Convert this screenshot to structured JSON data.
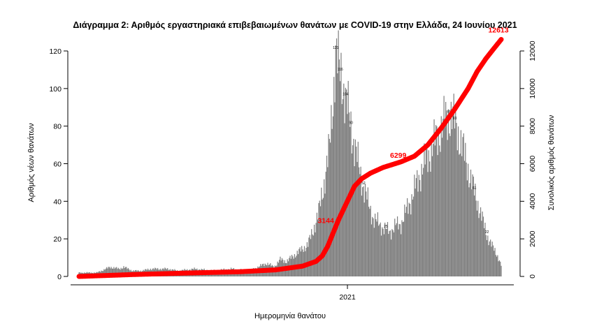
{
  "chart_data": {
    "type": "bar",
    "title": "Διάγραμμα 2: Αριθμός εργαστηριακά επιβεβαιωμένων θανάτων με COVID-19 στην Ελλάδα, 24 Ιουνίου 2021",
    "xlabel": "Ημερομηνία θανάτου",
    "ylabel_left": "Αριθμός νέων θανάτων",
    "ylabel_right": "Συνολικός αριθμός θανάτων",
    "x_tick_labels": [
      "2021"
    ],
    "y_left_ticks": [
      0,
      20,
      40,
      60,
      80,
      100,
      120
    ],
    "y_right_ticks": [
      0,
      2000,
      4000,
      6000,
      8000,
      10000,
      12000
    ],
    "ylim_left": [
      0,
      120
    ],
    "ylim_right": [
      0,
      12000
    ],
    "grid": false,
    "bar_color": "#7f7f7f",
    "line_color": "#ff0000",
    "bar_shape": [
      [
        0,
        2
      ],
      [
        20,
        2
      ],
      [
        35,
        5
      ],
      [
        45,
        4
      ],
      [
        50,
        5
      ],
      [
        60,
        3
      ],
      [
        70,
        3
      ],
      [
        80,
        4
      ],
      [
        100,
        4
      ],
      [
        110,
        3
      ],
      [
        130,
        4
      ],
      [
        150,
        3
      ],
      [
        170,
        4
      ],
      [
        190,
        3
      ],
      [
        200,
        5
      ],
      [
        210,
        7
      ],
      [
        218,
        5
      ],
      [
        225,
        9
      ],
      [
        232,
        8
      ],
      [
        240,
        11
      ],
      [
        248,
        14
      ],
      [
        256,
        17
      ],
      [
        262,
        25
      ],
      [
        268,
        34
      ],
      [
        274,
        50
      ],
      [
        280,
        68
      ],
      [
        284,
        95
      ],
      [
        287,
        120
      ],
      [
        290,
        111
      ],
      [
        294,
        106
      ],
      [
        300,
        90
      ],
      [
        306,
        75
      ],
      [
        312,
        60
      ],
      [
        318,
        48
      ],
      [
        324,
        38
      ],
      [
        330,
        30
      ],
      [
        336,
        28
      ],
      [
        342,
        25
      ],
      [
        348,
        24
      ],
      [
        354,
        27
      ],
      [
        360,
        28
      ],
      [
        366,
        35
      ],
      [
        372,
        42
      ],
      [
        378,
        50
      ],
      [
        384,
        58
      ],
      [
        390,
        64
      ],
      [
        396,
        70
      ],
      [
        402,
        76
      ],
      [
        408,
        82
      ],
      [
        414,
        86
      ],
      [
        418,
        85
      ],
      [
        422,
        80
      ],
      [
        426,
        73
      ],
      [
        432,
        63
      ],
      [
        438,
        52
      ],
      [
        444,
        42
      ],
      [
        450,
        32
      ],
      [
        456,
        22
      ],
      [
        462,
        16
      ],
      [
        468,
        11
      ],
      [
        472,
        6
      ]
    ],
    "cumulative_shape": [
      [
        0,
        0
      ],
      [
        60,
        100
      ],
      [
        120,
        180
      ],
      [
        180,
        250
      ],
      [
        220,
        350
      ],
      [
        250,
        550
      ],
      [
        265,
        800
      ],
      [
        272,
        1100
      ],
      [
        278,
        1600
      ],
      [
        284,
        2300
      ],
      [
        290,
        3000
      ],
      [
        296,
        3600
      ],
      [
        302,
        4200
      ],
      [
        308,
        4800
      ],
      [
        316,
        5200
      ],
      [
        326,
        5500
      ],
      [
        340,
        5800
      ],
      [
        360,
        6100
      ],
      [
        375,
        6400
      ],
      [
        390,
        7000
      ],
      [
        405,
        7900
      ],
      [
        420,
        8900
      ],
      [
        435,
        10000
      ],
      [
        445,
        10900
      ],
      [
        455,
        11600
      ],
      [
        465,
        12200
      ],
      [
        472,
        12613
      ]
    ],
    "bar_value_labels": [
      {
        "x": 287,
        "label": "121"
      },
      {
        "x": 292,
        "label": "116"
      },
      {
        "x": 298,
        "label": "104"
      },
      {
        "x": 304,
        "label": "90"
      },
      {
        "x": 318,
        "label": "52"
      },
      {
        "x": 343,
        "label": "25"
      },
      {
        "x": 414,
        "label": "89"
      },
      {
        "x": 420,
        "label": "93"
      },
      {
        "x": 442,
        "label": "61"
      },
      {
        "x": 456,
        "label": "22"
      }
    ],
    "annotations": [
      {
        "x": 290,
        "label": "3144"
      },
      {
        "x": 360,
        "label": "6299"
      },
      {
        "x": 472,
        "label": "12613"
      }
    ]
  }
}
